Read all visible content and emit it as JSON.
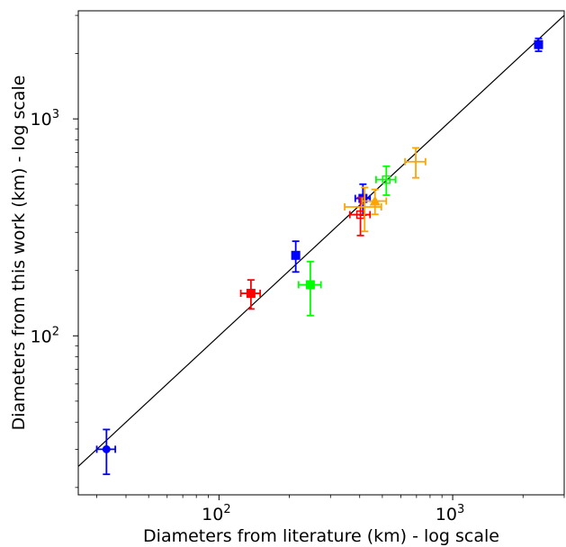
{
  "chart_data": {
    "type": "scatter",
    "xlabel": "Diameters from literature (km) - log scale",
    "ylabel": "Diameters from this work (km) - log scale",
    "xscale": "log",
    "yscale": "log",
    "xlim": [
      25,
      3000
    ],
    "ylim": [
      18.5,
      3150
    ],
    "x_major_ticks": [
      100,
      1000
    ],
    "y_major_ticks": [
      100,
      1000
    ],
    "grid": false,
    "legend": "none",
    "reference_line": "y = x",
    "points": [
      {
        "x": 2330,
        "y": 2200,
        "xerr": 0,
        "yerr": 150,
        "color": "#0000ff",
        "marker": "square"
      },
      {
        "x": 33,
        "y": 30,
        "xerr": 3,
        "yerr": 7,
        "color": "#0000ff",
        "marker": "circle"
      },
      {
        "x": 213,
        "y": 235,
        "xerr": 5,
        "yerr": 38,
        "color": "#0000ff",
        "marker": "square"
      },
      {
        "x": 413,
        "y": 430,
        "xerr": 30,
        "yerr": 70,
        "color": "#0000ff",
        "marker": "square"
      },
      {
        "x": 137,
        "y": 157,
        "xerr": 13,
        "yerr": 24,
        "color": "#ff0000",
        "marker": "square"
      },
      {
        "x": 403,
        "y": 362,
        "xerr": 40,
        "yerr": 72,
        "color": "#ff0000",
        "marker": "open-square"
      },
      {
        "x": 246,
        "y": 172,
        "xerr": 27,
        "yerr": 48,
        "color": "#00ff00",
        "marker": "square"
      },
      {
        "x": 520,
        "y": 525,
        "xerr": 50,
        "yerr": 80,
        "color": "#00ff00",
        "marker": "open-square"
      },
      {
        "x": 465,
        "y": 418,
        "xerr": 55,
        "yerr": 55,
        "color": "#ffa500",
        "marker": "triangle"
      },
      {
        "x": 420,
        "y": 393,
        "xerr": 75,
        "yerr": 90,
        "color": "#ffa500",
        "marker": "plus"
      },
      {
        "x": 695,
        "y": 635,
        "xerr": 70,
        "yerr": 100,
        "color": "#ffa500",
        "marker": "plus"
      }
    ]
  }
}
